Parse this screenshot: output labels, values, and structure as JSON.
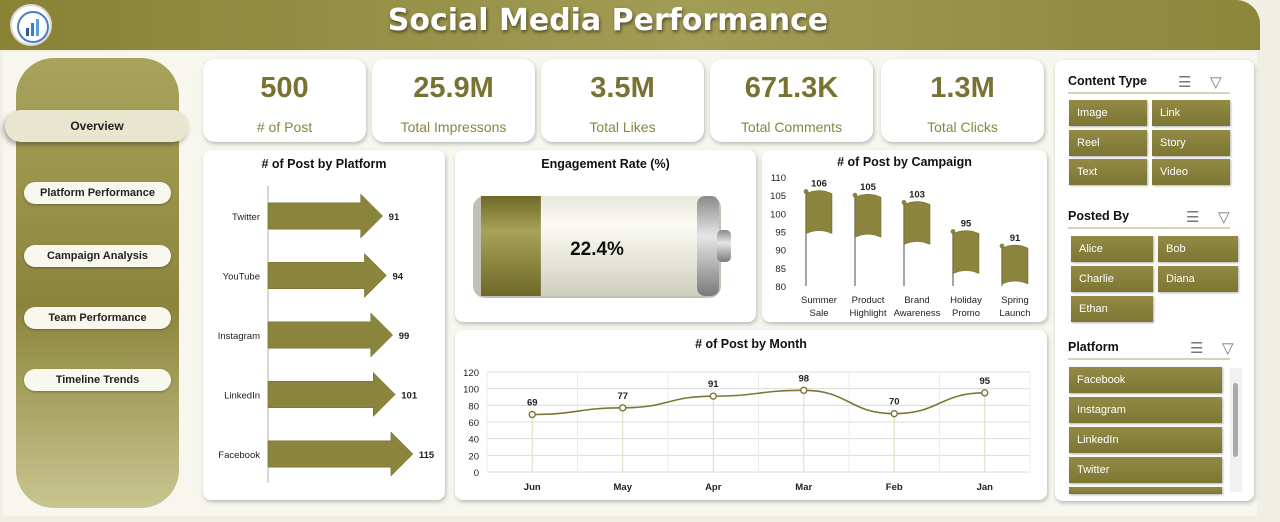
{
  "title": "Social Media Performance",
  "nav": [
    {
      "label": "Overview",
      "name": "nav-overview"
    },
    {
      "label": "Platform Performance",
      "name": "nav-platform-performance"
    },
    {
      "label": "Campaign Analysis",
      "name": "nav-campaign-analysis"
    },
    {
      "label": "Team Performance",
      "name": "nav-team-performance"
    },
    {
      "label": "Timeline Trends",
      "name": "nav-timeline-trends"
    }
  ],
  "kpis": [
    {
      "value": "500",
      "label": "# of Post"
    },
    {
      "value": "25.9M",
      "label": "Total Impressons"
    },
    {
      "value": "3.5M",
      "label": "Total Likes"
    },
    {
      "value": "671.3K",
      "label": "Total Comments"
    },
    {
      "value": "1.3M",
      "label": "Total Clicks"
    }
  ],
  "colors": {
    "accent": "#8b843c",
    "accent_dark": "#7d7634",
    "kpi_value": "#7a7232",
    "background": "#f7f7ef"
  },
  "slicers": [
    {
      "title": "Content Type",
      "items": [
        "Image",
        "Link",
        "Reel",
        "Story",
        "Text",
        "Video"
      ]
    },
    {
      "title": "Posted By",
      "items": [
        "Alice",
        "Bob",
        "Charlie",
        "Diana",
        "Ethan"
      ]
    },
    {
      "title": "Platform",
      "items": [
        "Facebook",
        "Instagram",
        "LinkedIn",
        "Twitter"
      ]
    }
  ],
  "icons": {
    "multi_select": "multi-select-icon",
    "clear_filter": "clear-filter-icon"
  },
  "chart_data": [
    {
      "type": "bar",
      "title": "# of Post by Platform",
      "orientation": "horizontal",
      "categories": [
        "Twitter",
        "YouTube",
        "Instagram",
        "LinkedIn",
        "Facebook"
      ],
      "values": [
        91,
        94,
        99,
        101,
        115
      ]
    },
    {
      "type": "gauge",
      "title": "Engagement Rate (%)",
      "value": 22.4,
      "label": "22.4%"
    },
    {
      "type": "bar",
      "title": "# of Post by Campaign",
      "categories": [
        [
          "Summer",
          "Sale"
        ],
        [
          "Product",
          "Highlight"
        ],
        [
          "Brand",
          "Awareness"
        ],
        [
          "Holiday",
          "Promo"
        ],
        [
          "Spring",
          "Launch"
        ]
      ],
      "values": [
        106,
        105,
        103,
        95,
        91
      ],
      "ylim": [
        80,
        110
      ],
      "yticks": [
        80,
        85,
        90,
        95,
        100,
        105,
        110
      ]
    },
    {
      "type": "line",
      "title": "# of Post by Month",
      "categories": [
        "Jun",
        "May",
        "Apr",
        "Mar",
        "Feb",
        "Jan"
      ],
      "values": [
        69,
        77,
        91,
        98,
        70,
        95
      ],
      "ylim": [
        0,
        120
      ],
      "yticks": [
        0,
        20,
        40,
        60,
        80,
        100,
        120
      ],
      "grid": true
    }
  ]
}
